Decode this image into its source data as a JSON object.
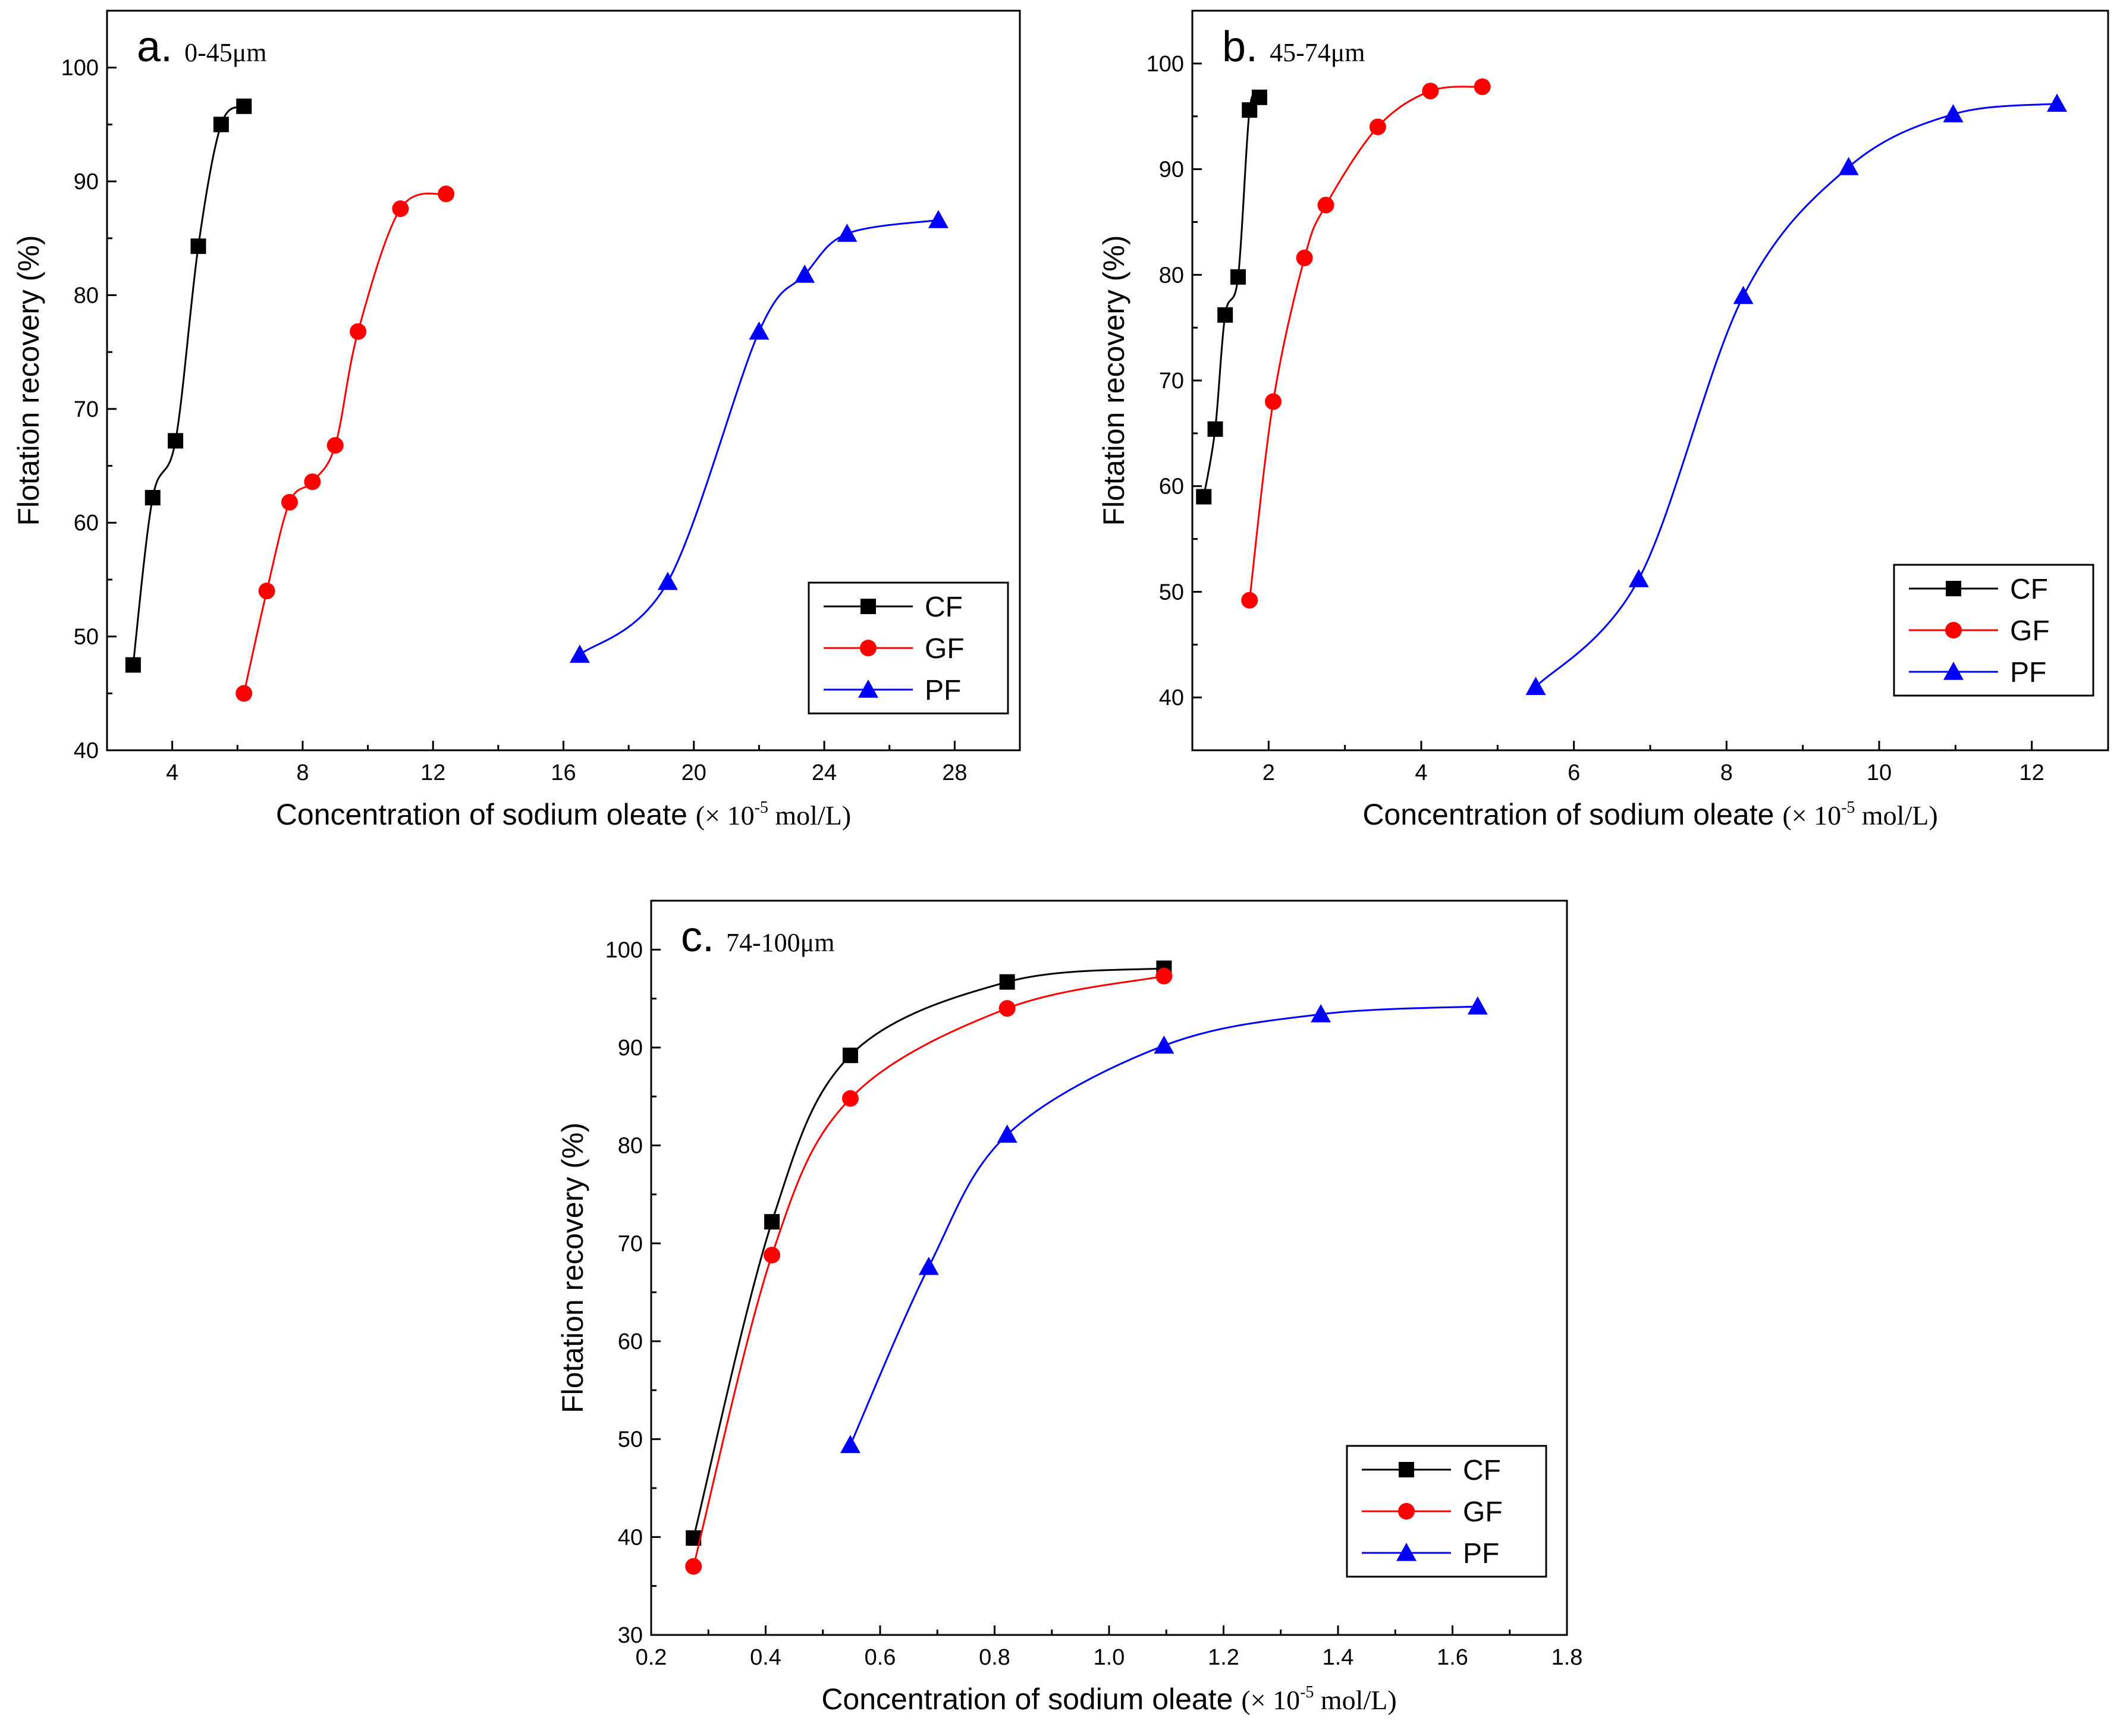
{
  "chart_data": [
    {
      "type": "line",
      "panel": "a.",
      "size_label": "0-45μm",
      "xlabel": "Concentration of sodium oleate",
      "xunit_pre": "(×  10",
      "xunit_exp": "-5",
      "xunit_post": " mol/L)",
      "ylabel": "Flotation recovery (%)",
      "xlim": [
        2,
        30
      ],
      "ylim": [
        40,
        105
      ],
      "xticks": [
        4,
        8,
        12,
        16,
        20,
        24,
        28
      ],
      "yticks": [
        40,
        50,
        60,
        70,
        80,
        90,
        100
      ],
      "legend_position": "bottom-right",
      "series": [
        {
          "name": "CF",
          "color": "#000000",
          "marker": "square",
          "x": [
            2.8,
            3.4,
            4.1,
            4.8,
            5.5,
            6.2
          ],
          "y": [
            47.5,
            62.2,
            67.2,
            84.3,
            95.0,
            96.6
          ]
        },
        {
          "name": "GF",
          "color": "#ff0000",
          "marker": "circle",
          "x": [
            6.2,
            6.9,
            7.6,
            8.3,
            9.0,
            9.7,
            11.0,
            12.4
          ],
          "y": [
            45.0,
            54.0,
            61.8,
            63.6,
            66.8,
            76.8,
            87.6,
            88.9
          ]
        },
        {
          "name": "PF",
          "color": "#0000ff",
          "marker": "triangle",
          "x": [
            16.5,
            19.2,
            22.0,
            23.4,
            24.7,
            27.5
          ],
          "y": [
            48.4,
            54.8,
            76.8,
            81.8,
            85.4,
            86.6
          ]
        }
      ]
    },
    {
      "type": "line",
      "panel": "b.",
      "size_label": "45-74μm",
      "xlabel": "Concentration of sodium oleate",
      "xunit_pre": "(×  10",
      "xunit_exp": "-5",
      "xunit_post": " mol/L)",
      "ylabel": "Flotation recovery (%)",
      "xlim": [
        1,
        13
      ],
      "ylim": [
        35,
        105
      ],
      "xticks": [
        2,
        4,
        6,
        8,
        10,
        12
      ],
      "yticks": [
        40,
        50,
        60,
        70,
        80,
        90,
        100
      ],
      "legend_position": "bottom-right",
      "series": [
        {
          "name": "CF",
          "color": "#000000",
          "marker": "square",
          "x": [
            1.15,
            1.3,
            1.43,
            1.6,
            1.75,
            1.88
          ],
          "y": [
            59.0,
            65.4,
            76.2,
            79.8,
            95.6,
            96.8
          ]
        },
        {
          "name": "GF",
          "color": "#ff0000",
          "marker": "circle",
          "x": [
            1.75,
            2.06,
            2.47,
            2.75,
            3.43,
            4.12,
            4.8
          ],
          "y": [
            49.2,
            68.0,
            81.6,
            86.6,
            94.0,
            97.4,
            97.8
          ]
        },
        {
          "name": "PF",
          "color": "#0000ff",
          "marker": "triangle",
          "x": [
            5.5,
            6.85,
            8.22,
            9.6,
            10.97,
            12.33
          ],
          "y": [
            41.0,
            51.2,
            78.0,
            90.2,
            95.2,
            96.2
          ]
        }
      ]
    },
    {
      "type": "line",
      "panel": "c.",
      "size_label": "74-100μm",
      "xlabel": "Concentration of sodium oleate",
      "xunit_pre": "(×  10",
      "xunit_exp": "-5",
      "xunit_post": " mol/L)",
      "ylabel": "Flotation recovery (%)",
      "xlim": [
        0.2,
        1.8
      ],
      "ylim": [
        30,
        105
      ],
      "xticks": [
        0.2,
        0.4,
        0.6,
        0.8,
        1.0,
        1.2,
        1.4,
        1.6,
        1.8
      ],
      "yticks": [
        30,
        40,
        50,
        60,
        70,
        80,
        90,
        100
      ],
      "legend_position": "bottom-right",
      "series": [
        {
          "name": "CF",
          "color": "#000000",
          "marker": "square",
          "x": [
            0.274,
            0.411,
            0.548,
            0.822,
            1.096
          ],
          "y": [
            39.9,
            72.2,
            89.2,
            96.7,
            98.1
          ]
        },
        {
          "name": "GF",
          "color": "#ff0000",
          "marker": "circle",
          "x": [
            0.274,
            0.411,
            0.548,
            0.822,
            1.096
          ],
          "y": [
            37.0,
            68.8,
            84.8,
            94.0,
            97.3
          ]
        },
        {
          "name": "PF",
          "color": "#0000ff",
          "marker": "triangle",
          "x": [
            0.548,
            0.685,
            0.822,
            1.096,
            1.37,
            1.644
          ],
          "y": [
            49.4,
            67.6,
            81.1,
            90.2,
            93.4,
            94.2
          ]
        }
      ]
    }
  ]
}
